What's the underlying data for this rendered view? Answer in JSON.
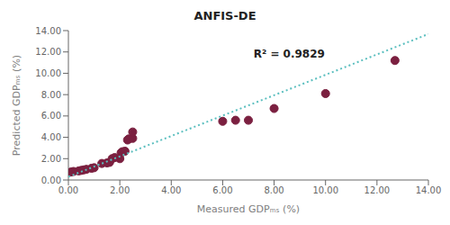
{
  "chart_data": {
    "type": "scatter",
    "title": "ANFIS-DE",
    "x_label": "Measured GDPₘₛ (%)",
    "y_label": "Predicted GDPₘₛ (%)",
    "xlim": [
      0,
      14
    ],
    "ylim": [
      0,
      14
    ],
    "xticks": [
      {
        "value": 0.0,
        "label": "0.00"
      },
      {
        "value": 2.0,
        "label": "2.00"
      },
      {
        "value": 4.0,
        "label": "4.00"
      },
      {
        "value": 6.0,
        "label": "6.00"
      },
      {
        "value": 8.0,
        "label": "8.00"
      },
      {
        "value": 10.0,
        "label": "10.00"
      },
      {
        "value": 12.0,
        "label": "12.00"
      },
      {
        "value": 14.0,
        "label": "14.00"
      }
    ],
    "yticks": [
      {
        "value": 0.0,
        "label": "0.00"
      },
      {
        "value": 2.0,
        "label": "2.00"
      },
      {
        "value": 4.0,
        "label": "4.00"
      },
      {
        "value": 6.0,
        "label": "6.00"
      },
      {
        "value": 8.0,
        "label": "8.00"
      },
      {
        "value": 10.0,
        "label": "10.00"
      },
      {
        "value": 12.0,
        "label": "12.00"
      },
      {
        "value": 14.0,
        "label": "14.00"
      }
    ],
    "grid": false,
    "series": [
      {
        "type": "scatter",
        "marker": "circle",
        "color": "#7B2040",
        "x": [
          0.1,
          0.2,
          0.4,
          0.5,
          0.6,
          0.7,
          0.9,
          1.0,
          1.3,
          1.5,
          1.6,
          1.7,
          1.8,
          2.0,
          2.05,
          2.1,
          2.2,
          2.3,
          2.35,
          2.5,
          2.5,
          6.0,
          6.5,
          7.0,
          8.0,
          10.0,
          12.7
        ],
        "values": [
          0.75,
          0.8,
          0.85,
          0.9,
          0.95,
          1.0,
          1.1,
          1.15,
          1.55,
          1.6,
          1.65,
          2.0,
          2.1,
          2.0,
          2.55,
          2.65,
          2.7,
          3.75,
          3.85,
          3.9,
          4.5,
          5.5,
          5.6,
          5.6,
          6.7,
          8.1,
          11.2
        ]
      },
      {
        "type": "line",
        "line_style": "dotted",
        "color": "#5BBFBF",
        "x": [
          0.0,
          14.0
        ],
        "values": [
          0.3,
          13.677777777777777
        ]
      }
    ],
    "annotations": [
      {
        "text": "R² = 0.9829",
        "x": 7.2,
        "y": 11.8
      }
    ]
  }
}
